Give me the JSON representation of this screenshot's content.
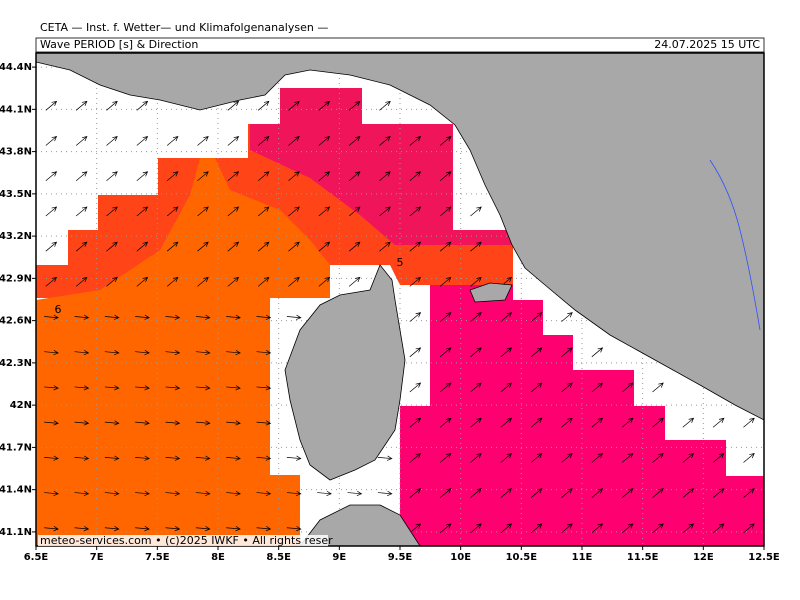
{
  "header": {
    "institute": "CETA — Inst. f. Wetter— und Klimafolgenanalysen —",
    "product": "Wave PERIOD [s] & Direction",
    "valid_time": "24.07.2025 15 UTC"
  },
  "footer": "meteo-services.com • (c)2025 IWKF • All rights reser",
  "map": {
    "xlim": [
      6.5,
      12.5
    ],
    "ylim": [
      41.0,
      44.5
    ],
    "grid": true,
    "xticks": [
      {
        "value": 6.5,
        "label": "6.5E"
      },
      {
        "value": 7,
        "label": "7E"
      },
      {
        "value": 7.5,
        "label": "7.5E"
      },
      {
        "value": 8,
        "label": "8E"
      },
      {
        "value": 8.5,
        "label": "8.5E"
      },
      {
        "value": 9,
        "label": "9E"
      },
      {
        "value": 9.5,
        "label": "9.5E"
      },
      {
        "value": 10,
        "label": "10E"
      },
      {
        "value": 10.5,
        "label": "10.5E"
      },
      {
        "value": 11,
        "label": "11E"
      },
      {
        "value": 11.5,
        "label": "11.5E"
      },
      {
        "value": 12,
        "label": "12E"
      },
      {
        "value": 12.5,
        "label": "12.5E"
      }
    ],
    "yticks": [
      {
        "value": 44.4,
        "label": "44.4N"
      },
      {
        "value": 44.1,
        "label": "44.1N"
      },
      {
        "value": 43.8,
        "label": "43.8N"
      },
      {
        "value": 43.5,
        "label": "43.5N"
      },
      {
        "value": 43.2,
        "label": "43.2N"
      },
      {
        "value": 42.9,
        "label": "42.9N"
      },
      {
        "value": 42.6,
        "label": "42.6N"
      },
      {
        "value": 42.3,
        "label": "42.3N"
      },
      {
        "value": 42,
        "label": "42N"
      },
      {
        "value": 41.7,
        "label": "41.7N"
      },
      {
        "value": 41.4,
        "label": "41.4N"
      },
      {
        "value": 41.1,
        "label": "41.1N"
      }
    ],
    "contour_labels": [
      "5",
      "6"
    ]
  }
}
